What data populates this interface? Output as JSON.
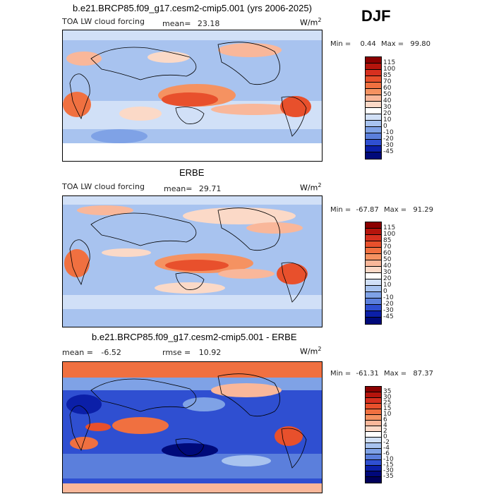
{
  "figure": {
    "season": "DJF",
    "units": "W/m",
    "units_sup": "2"
  },
  "panels": [
    {
      "title": "b.e21.BRCP85.f09_g17.cesm2-cmip5.001 (yrs 2006-2025)",
      "subtitle": "TOA LW cloud forcing",
      "mean_label": "mean=",
      "mean_value": "23.18",
      "min_label": "Min =",
      "min_value": "0.44",
      "max_label": "Max =",
      "max_value": "99.80",
      "colorbar_levels": [
        "115",
        "100",
        "85",
        "70",
        "60",
        "50",
        "40",
        "30",
        "20",
        "10",
        "0",
        "-10",
        "-20",
        "-30",
        "-45"
      ]
    },
    {
      "title": "ERBE",
      "subtitle": "TOA LW cloud forcing",
      "mean_label": "mean=",
      "mean_value": "29.71",
      "min_label": "Min =",
      "min_value": "-67.87",
      "max_label": "Max =",
      "max_value": "91.29",
      "colorbar_levels": [
        "115",
        "100",
        "85",
        "70",
        "60",
        "50",
        "40",
        "30",
        "20",
        "10",
        "0",
        "-10",
        "-20",
        "-30",
        "-45"
      ]
    },
    {
      "title": "b.e21.BRCP85.f09_g17.cesm2-cmip5.001 - ERBE",
      "mean_label": "mean =",
      "mean_value": "-6.52",
      "rmse_label": "rmse =",
      "rmse_value": "10.92",
      "min_label": "Min =",
      "min_value": "-61.31",
      "max_label": "Max =",
      "max_value": "87.37",
      "colorbar_levels": [
        "35",
        "30",
        "25",
        "15",
        "10",
        "6",
        "4",
        "2",
        "0",
        "-2",
        "-4",
        "-6",
        "-10",
        "-15",
        "-30",
        "-35"
      ]
    }
  ],
  "colors": {
    "abs_scale": [
      "#8b0000",
      "#b5140c",
      "#d7301f",
      "#e8502c",
      "#f07040",
      "#f59261",
      "#f9b79a",
      "#fbd9c7",
      "#ffffff",
      "#d1e0f7",
      "#a8c3ef",
      "#7fa2e6",
      "#5b7fdc",
      "#2f4fd1",
      "#0b1fa8",
      "#000a7a"
    ],
    "diff_scale": [
      "#8b0000",
      "#b5140c",
      "#d7301f",
      "#e8502c",
      "#f07040",
      "#f59261",
      "#f9b79a",
      "#fbd9c7",
      "#ffffff",
      "#d1e0f7",
      "#a8c3ef",
      "#7fa2e6",
      "#5b7fdc",
      "#2f4fd1",
      "#0b1fa8",
      "#00087a",
      "#00005a"
    ]
  }
}
